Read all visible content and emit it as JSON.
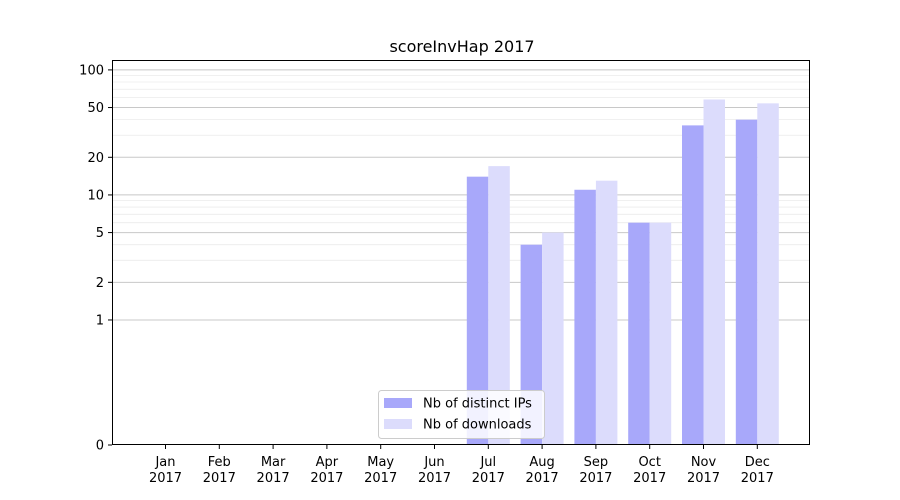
{
  "chart_data": {
    "type": "bar",
    "title": "scoreInvHap 2017",
    "xlabel": "",
    "ylabel": "",
    "yscale": "symlog",
    "ylim": [
      0,
      120
    ],
    "yticks": [
      0,
      1,
      2,
      5,
      10,
      20,
      50,
      100
    ],
    "grid": true,
    "legend_position": "bottom-center",
    "categories": [
      "Jan\n2017",
      "Feb\n2017",
      "Mar\n2017",
      "Apr\n2017",
      "May\n2017",
      "Jun\n2017",
      "Jul\n2017",
      "Aug\n2017",
      "Sep\n2017",
      "Oct\n2017",
      "Nov\n2017",
      "Dec\n2017"
    ],
    "series": [
      {
        "name": "Nb of distinct IPs",
        "color": "#a8a8fa",
        "values": [
          0,
          0,
          0,
          0,
          0,
          0,
          14,
          4,
          11,
          6,
          36,
          40
        ]
      },
      {
        "name": "Nb of downloads",
        "color": "#dcdcfc",
        "values": [
          0,
          0,
          0,
          0,
          0,
          0,
          17,
          5,
          13,
          6,
          58,
          54
        ]
      }
    ]
  }
}
